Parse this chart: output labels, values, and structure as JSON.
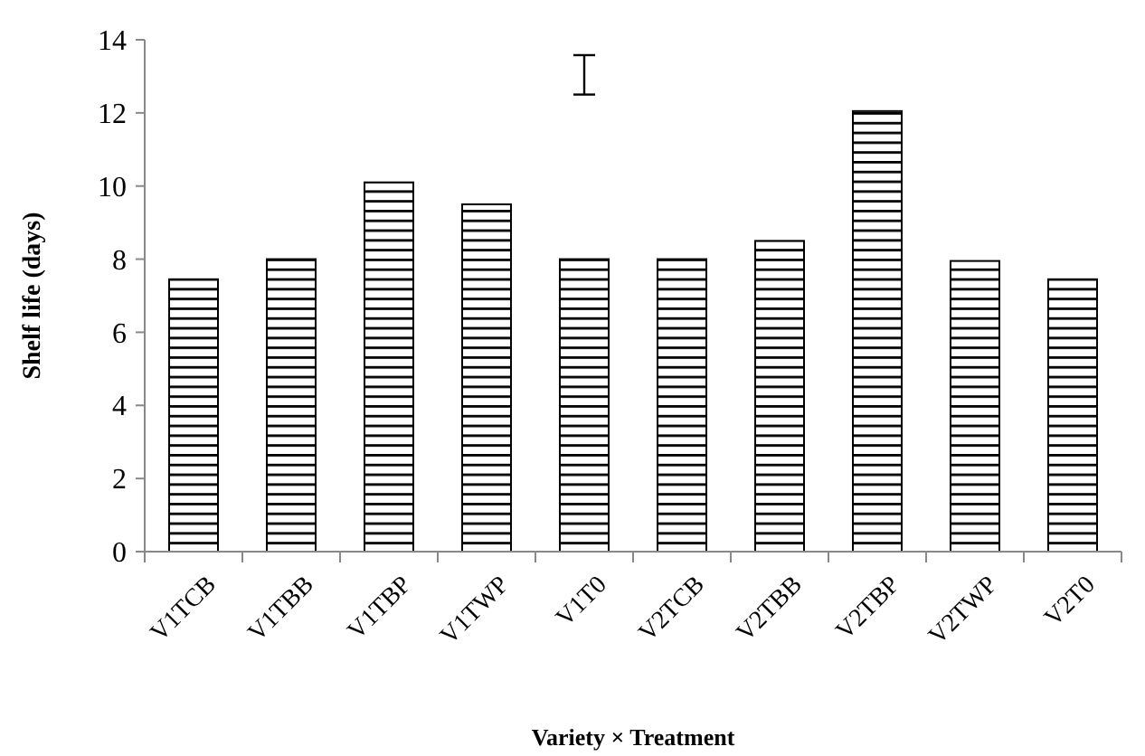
{
  "chart_data": {
    "type": "bar",
    "xlabel": "Variety × Treatment",
    "ylabel": "Shelf life (days)",
    "categories": [
      "V1TCB",
      "V1TBB",
      "V1TBP",
      "V1TWP",
      "V1T0",
      "V2TCB",
      "V2TBB",
      "V2TBP",
      "V2TWP",
      "V2T0"
    ],
    "series": [
      {
        "type": "bar",
        "color": "#000000",
        "values": [
          7.45,
          8.0,
          10.1,
          9.5,
          8.0,
          8.0,
          8.5,
          12.05,
          7.95,
          7.45
        ]
      }
    ],
    "ylim": [
      0,
      14
    ],
    "yticks": [
      0,
      2,
      4,
      6,
      8,
      10,
      12,
      14
    ],
    "grid": false
  }
}
